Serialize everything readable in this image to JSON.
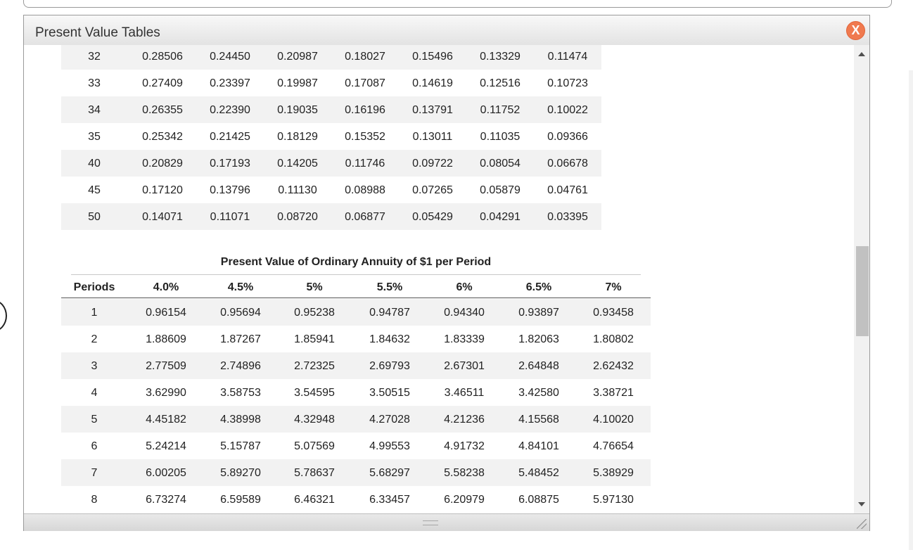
{
  "window": {
    "title": "Present Value Tables",
    "close_label": "X"
  },
  "pv_table": {
    "rows": [
      {
        "period": "32",
        "values": [
          "0.28506",
          "0.24450",
          "0.20987",
          "0.18027",
          "0.15496",
          "0.13329",
          "0.11474"
        ]
      },
      {
        "period": "33",
        "values": [
          "0.27409",
          "0.23397",
          "0.19987",
          "0.17087",
          "0.14619",
          "0.12516",
          "0.10723"
        ]
      },
      {
        "period": "34",
        "values": [
          "0.26355",
          "0.22390",
          "0.19035",
          "0.16196",
          "0.13791",
          "0.11752",
          "0.10022"
        ]
      },
      {
        "period": "35",
        "values": [
          "0.25342",
          "0.21425",
          "0.18129",
          "0.15352",
          "0.13011",
          "0.11035",
          "0.09366"
        ]
      },
      {
        "period": "40",
        "values": [
          "0.20829",
          "0.17193",
          "0.14205",
          "0.11746",
          "0.09722",
          "0.08054",
          "0.06678"
        ]
      },
      {
        "period": "45",
        "values": [
          "0.17120",
          "0.13796",
          "0.11130",
          "0.08988",
          "0.07265",
          "0.05879",
          "0.04761"
        ]
      },
      {
        "period": "50",
        "values": [
          "0.14071",
          "0.11071",
          "0.08720",
          "0.06877",
          "0.05429",
          "0.04291",
          "0.03395"
        ]
      }
    ]
  },
  "annuity_table": {
    "title": "Present Value of Ordinary Annuity of $1 per Period",
    "headers": [
      "Periods",
      "4.0%",
      "4.5%",
      "5%",
      "5.5%",
      "6%",
      "6.5%",
      "7%"
    ],
    "rows": [
      {
        "period": "1",
        "values": [
          "0.96154",
          "0.95694",
          "0.95238",
          "0.94787",
          "0.94340",
          "0.93897",
          "0.93458"
        ]
      },
      {
        "period": "2",
        "values": [
          "1.88609",
          "1.87267",
          "1.85941",
          "1.84632",
          "1.83339",
          "1.82063",
          "1.80802"
        ]
      },
      {
        "period": "3",
        "values": [
          "2.77509",
          "2.74896",
          "2.72325",
          "2.69793",
          "2.67301",
          "2.64848",
          "2.62432"
        ]
      },
      {
        "period": "4",
        "values": [
          "3.62990",
          "3.58753",
          "3.54595",
          "3.50515",
          "3.46511",
          "3.42580",
          "3.38721"
        ]
      },
      {
        "period": "5",
        "values": [
          "4.45182",
          "4.38998",
          "4.32948",
          "4.27028",
          "4.21236",
          "4.15568",
          "4.10020"
        ]
      },
      {
        "period": "6",
        "values": [
          "5.24214",
          "5.15787",
          "5.07569",
          "4.99553",
          "4.91732",
          "4.84101",
          "4.76654"
        ]
      },
      {
        "period": "7",
        "values": [
          "6.00205",
          "5.89270",
          "5.78637",
          "5.68297",
          "5.58238",
          "5.48452",
          "5.38929"
        ]
      },
      {
        "period": "8",
        "values": [
          "6.73274",
          "6.59589",
          "6.46321",
          "6.33457",
          "6.20979",
          "6.08875",
          "5.97130"
        ]
      }
    ]
  },
  "icons": {
    "close": "close-icon",
    "scroll_up": "chevron-up-icon",
    "scroll_down": "chevron-down-icon",
    "resize": "resize-grip-icon"
  }
}
